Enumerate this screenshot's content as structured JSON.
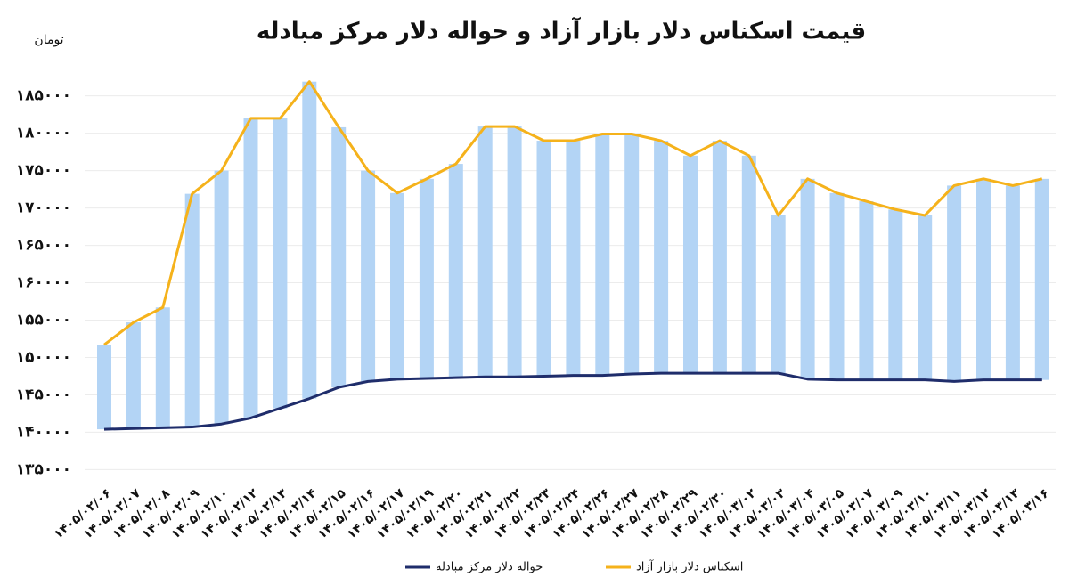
{
  "chart_data": {
    "type": "range-line",
    "title": "قیمت اسکناس دلار بازار آزاد و حواله دلار مرکز مبادله",
    "y_label": "تومان",
    "categories": [
      "۱۴۰۵/۰۲/۰۶",
      "۱۴۰۵/۰۲/۰۷",
      "۱۴۰۵/۰۲/۰۸",
      "۱۴۰۵/۰۲/۰۹",
      "۱۴۰۵/۰۲/۱۰",
      "۱۴۰۵/۰۲/۱۲",
      "۱۴۰۵/۰۲/۱۳",
      "۱۴۰۵/۰۲/۱۴",
      "۱۴۰۵/۰۲/۱۵",
      "۱۴۰۵/۰۲/۱۶",
      "۱۴۰۵/۰۲/۱۷",
      "۱۴۰۵/۰۲/۱۹",
      "۱۴۰۵/۰۲/۲۰",
      "۱۴۰۵/۰۲/۲۱",
      "۱۴۰۵/۰۲/۲۲",
      "۱۴۰۵/۰۲/۲۳",
      "۱۴۰۵/۰۲/۲۴",
      "۱۴۰۵/۰۲/۲۶",
      "۱۴۰۵/۰۲/۲۷",
      "۱۴۰۵/۰۲/۲۸",
      "۱۴۰۵/۰۲/۲۹",
      "۱۴۰۵/۰۲/۳۰",
      "۱۴۰۵/۰۳/۰۲",
      "۱۴۰۵/۰۳/۰۳",
      "۱۴۰۵/۰۳/۰۴",
      "۱۴۰۵/۰۳/۰۵",
      "۱۴۰۵/۰۳/۰۷",
      "۱۴۰۵/۰۳/۰۹",
      "۱۴۰۵/۰۳/۱۰",
      "۱۴۰۵/۰۳/۱۱",
      "۱۴۰۵/۰۳/۱۲",
      "۱۴۰۵/۰۳/۱۳",
      "۱۴۰۵/۰۳/۱۶"
    ],
    "series": [
      {
        "name": "حواله دلار مرکز مبادله",
        "color": "#1f2d6b",
        "values": [
          140400,
          140500,
          140600,
          140700,
          141100,
          141900,
          143200,
          144500,
          146000,
          146800,
          147100,
          147200,
          147300,
          147400,
          147400,
          147500,
          147600,
          147600,
          147800,
          147900,
          147900,
          147900,
          147900,
          147900,
          147100,
          147000,
          147000,
          147000,
          147000,
          146800,
          147000,
          147000,
          147000
        ]
      },
      {
        "name": "اسکناس دلار بازار آزاد",
        "color": "#f5b21b",
        "values": [
          151700,
          154700,
          156700,
          171900,
          175000,
          182000,
          182000,
          186900,
          180800,
          175000,
          172000,
          173900,
          175900,
          180900,
          180900,
          179000,
          179000,
          179900,
          179900,
          179000,
          177000,
          179000,
          177000,
          169000,
          173900,
          172000,
          170900,
          169800,
          169000,
          173000,
          173900,
          173000,
          173900
        ]
      }
    ],
    "bar_color": "#b3d4f5",
    "ylim": [
      133500,
      187700
    ],
    "yticks": [
      {
        "value": 135000,
        "label": "۱۳۵۰۰۰"
      },
      {
        "value": 140000,
        "label": "۱۴۰۰۰۰"
      },
      {
        "value": 145000,
        "label": "۱۴۵۰۰۰"
      },
      {
        "value": 150000,
        "label": "۱۵۰۰۰۰"
      },
      {
        "value": 155000,
        "label": "۱۵۵۰۰۰"
      },
      {
        "value": 160000,
        "label": "۱۶۰۰۰۰"
      },
      {
        "value": 165000,
        "label": "۱۶۵۰۰۰"
      },
      {
        "value": 170000,
        "label": "۱۷۰۰۰۰"
      },
      {
        "value": 175000,
        "label": "۱۷۵۰۰۰"
      },
      {
        "value": 180000,
        "label": "۱۸۰۰۰۰"
      },
      {
        "value": 185000,
        "label": "۱۸۵۰۰۰"
      }
    ],
    "grid": true
  }
}
